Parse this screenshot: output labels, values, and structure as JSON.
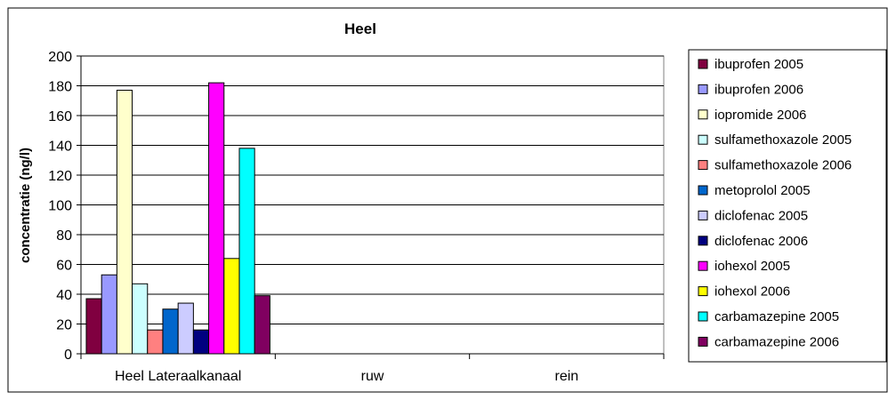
{
  "chart_data": {
    "type": "bar",
    "title": "Heel",
    "xlabel": "",
    "ylabel": "concentratie (ng/l)",
    "ylim": [
      0,
      200
    ],
    "yticks": [
      0,
      20,
      40,
      60,
      80,
      100,
      120,
      140,
      160,
      180,
      200
    ],
    "grid": true,
    "legend_position": "right",
    "categories": [
      "Heel Lateraalkanaal",
      "ruw",
      "rein"
    ],
    "series": [
      {
        "name": "ibuprofen 2005",
        "color": "#800040",
        "values": [
          37,
          null,
          null
        ]
      },
      {
        "name": "ibuprofen 2006",
        "color": "#9999FF",
        "values": [
          53,
          null,
          null
        ]
      },
      {
        "name": "iopromide 2006",
        "color": "#FFFFCC",
        "values": [
          177,
          null,
          null
        ]
      },
      {
        "name": "sulfamethoxazole 2005",
        "color": "#CCFFFF",
        "values": [
          47,
          null,
          null
        ]
      },
      {
        "name": "sulfamethoxazole 2006",
        "color": "#FF8080",
        "values": [
          16,
          null,
          null
        ]
      },
      {
        "name": "metoprolol 2005",
        "color": "#0066CC",
        "values": [
          30,
          null,
          null
        ]
      },
      {
        "name": "diclofenac 2005",
        "color": "#CCCCFF",
        "values": [
          34,
          null,
          null
        ]
      },
      {
        "name": "diclofenac 2006",
        "color": "#000080",
        "values": [
          16,
          null,
          null
        ]
      },
      {
        "name": "iohexol 2005",
        "color": "#FF00FF",
        "values": [
          182,
          null,
          null
        ]
      },
      {
        "name": "iohexol 2006",
        "color": "#FFFF00",
        "values": [
          64,
          null,
          null
        ]
      },
      {
        "name": "carbamazepine 2005",
        "color": "#00FFFF",
        "values": [
          138,
          null,
          null
        ]
      },
      {
        "name": "carbamazepine 2006",
        "color": "#800060",
        "values": [
          39,
          null,
          null
        ]
      }
    ]
  }
}
